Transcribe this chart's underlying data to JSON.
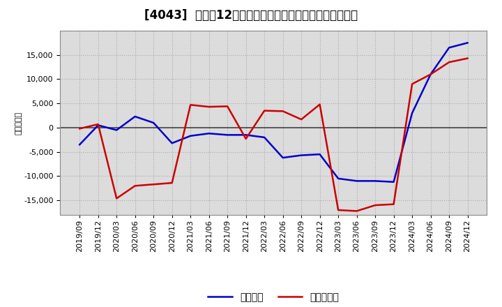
{
  "title": "[4043]  利益だ12か月移動合計の対前年同期増減額の推移",
  "ylabel": "（百万円）",
  "background_color": "#ffffff",
  "plot_bg_color": "#dcdcdc",
  "x_labels": [
    "2019/09",
    "2019/12",
    "2020/03",
    "2020/06",
    "2020/09",
    "2020/12",
    "2021/03",
    "2021/06",
    "2021/09",
    "2021/12",
    "2022/03",
    "2022/06",
    "2022/09",
    "2022/12",
    "2023/03",
    "2023/06",
    "2023/09",
    "2023/12",
    "2024/03",
    "2024/06",
    "2024/09",
    "2024/12"
  ],
  "operating_profit": [
    -3500,
    500,
    -500,
    2300,
    1000,
    -3200,
    -1700,
    -1200,
    -1500,
    -1500,
    -2000,
    -6200,
    -5700,
    -5500,
    -10500,
    -11000,
    -11000,
    -11200,
    3000,
    11000,
    16500,
    17500
  ],
  "net_profit": [
    -200,
    700,
    -14600,
    -12000,
    -11700,
    -11400,
    4700,
    4300,
    4400,
    -2300,
    3500,
    3400,
    1700,
    4800,
    -17000,
    -17200,
    -16000,
    -15800,
    9000,
    11000,
    13500,
    14300
  ],
  "line_color_blue": "#0000cc",
  "line_color_red": "#cc0000",
  "legend_blue": "経常利益",
  "legend_red": "当期純利益",
  "ylim": [
    -18000,
    20000
  ],
  "yticks": [
    -15000,
    -10000,
    -5000,
    0,
    5000,
    10000,
    15000
  ],
  "grid_color": "#aaaaaa",
  "zero_line_color": "#444444",
  "title_fontsize": 12,
  "axis_fontsize": 8,
  "legend_fontsize": 10
}
